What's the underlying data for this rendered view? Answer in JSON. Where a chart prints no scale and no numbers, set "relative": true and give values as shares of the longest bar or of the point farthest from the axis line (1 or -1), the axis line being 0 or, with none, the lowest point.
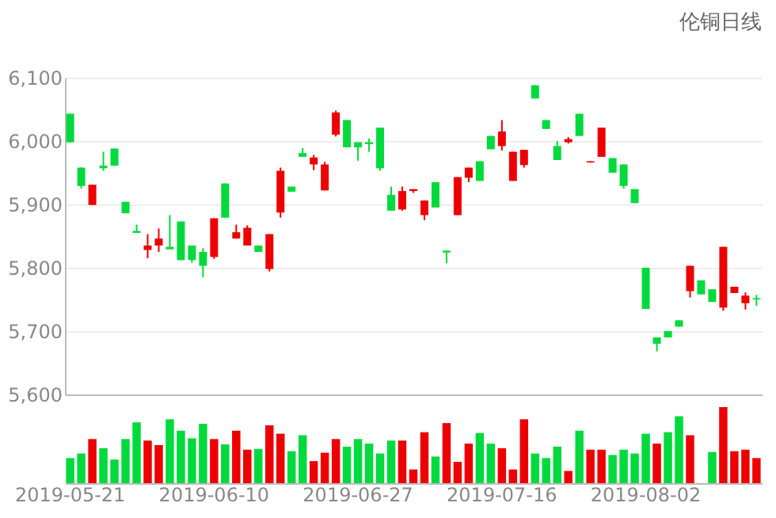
{
  "chart_data": [
    {
      "type": "candlestick",
      "title": "伦铜日线",
      "categories": [
        "2019-05-21",
        null,
        null,
        null,
        null,
        null,
        null,
        null,
        null,
        null,
        null,
        null,
        null,
        "2019-06-10",
        null,
        null,
        null,
        null,
        null,
        null,
        null,
        null,
        null,
        null,
        null,
        null,
        "2019-06-27",
        null,
        null,
        null,
        null,
        null,
        null,
        null,
        null,
        null,
        null,
        null,
        null,
        "2019-07-16",
        null,
        null,
        null,
        null,
        null,
        null,
        null,
        null,
        null,
        null,
        null,
        null,
        "2019-08-02",
        null,
        null,
        null,
        null,
        null,
        null,
        null,
        null,
        null,
        null
      ],
      "ohlc": [
        [
          6043,
          6043,
          5998,
          5998
        ],
        [
          5958,
          5958,
          5925,
          5929
        ],
        [
          5899,
          5931,
          5899,
          5931
        ],
        [
          5961,
          5983,
          5953,
          5957
        ],
        [
          5988,
          5988,
          5961,
          5961
        ],
        [
          5904,
          5904,
          5886,
          5886
        ],
        [
          5858,
          5868,
          5855,
          5855
        ],
        [
          5828,
          5853,
          5815,
          5835
        ],
        [
          5835,
          5862,
          5825,
          5846
        ],
        [
          5833,
          5883,
          5829,
          5829
        ],
        [
          5873,
          5873,
          5812,
          5812
        ],
        [
          5835,
          5835,
          5808,
          5812
        ],
        [
          5825,
          5831,
          5785,
          5803
        ],
        [
          5817,
          5878,
          5814,
          5878
        ],
        [
          5933,
          5933,
          5879,
          5879
        ],
        [
          5846,
          5868,
          5846,
          5856
        ],
        [
          5835,
          5867,
          5835,
          5863
        ],
        [
          5835,
          5835,
          5825,
          5825
        ],
        [
          5798,
          5853,
          5794,
          5853
        ],
        [
          5887,
          5958,
          5879,
          5953
        ],
        [
          5928,
          5928,
          5920,
          5920
        ],
        [
          5981,
          5989,
          5975,
          5975
        ],
        [
          5963,
          5978,
          5954,
          5974
        ],
        [
          5922,
          5967,
          5922,
          5963
        ],
        [
          6010,
          6048,
          6007,
          6045
        ],
        [
          6033,
          6033,
          5990,
          5990
        ],
        [
          5998,
          5998,
          5969,
          5990
        ],
        [
          5998,
          6004,
          5983,
          5995
        ],
        [
          6021,
          6021,
          5953,
          5957
        ],
        [
          5915,
          5928,
          5890,
          5890
        ],
        [
          5892,
          5928,
          5890,
          5921
        ],
        [
          5921,
          5924,
          5918,
          5924
        ],
        [
          5883,
          5906,
          5875,
          5906
        ],
        [
          5935,
          5935,
          5895,
          5895
        ],
        [
          5827,
          5827,
          5807,
          5824
        ],
        [
          5883,
          5943,
          5883,
          5943
        ],
        [
          5942,
          5958,
          5935,
          5958
        ],
        [
          5968,
          5968,
          5937,
          5937
        ],
        [
          6008,
          6008,
          5987,
          5987
        ],
        [
          5992,
          6033,
          5985,
          6015
        ],
        [
          5937,
          5983,
          5937,
          5983
        ],
        [
          5962,
          5986,
          5958,
          5986
        ],
        [
          6088,
          6088,
          6067,
          6067
        ],
        [
          6033,
          6033,
          6019,
          6019
        ],
        [
          5992,
          6000,
          5970,
          5970
        ],
        [
          5998,
          6006,
          5996,
          6003
        ],
        [
          6043,
          6043,
          6008,
          6008
        ],
        [
          5966,
          5968,
          5966,
          5968
        ],
        [
          5975,
          6021,
          5975,
          6021
        ],
        [
          5973,
          5973,
          5950,
          5950
        ],
        [
          5963,
          5963,
          5925,
          5929
        ],
        [
          5924,
          5924,
          5902,
          5902
        ],
        [
          5800,
          5800,
          5735,
          5735
        ],
        [
          5690,
          5690,
          5668,
          5680
        ],
        [
          5700,
          5700,
          5690,
          5690
        ],
        [
          5717,
          5717,
          5707,
          5707
        ],
        [
          5763,
          5803,
          5753,
          5803
        ],
        [
          5780,
          5780,
          5758,
          5758
        ],
        [
          5766,
          5766,
          5746,
          5746
        ],
        [
          5737,
          5833,
          5732,
          5833
        ],
        [
          5760,
          5770,
          5760,
          5770
        ],
        [
          5744,
          5761,
          5734,
          5756
        ],
        [
          5752,
          5757,
          5740,
          5750
        ]
      ],
      "colors": [
        "#00da3c",
        "#00da3c",
        "#ec0000",
        "#00da3c",
        "#00da3c",
        "#00da3c",
        "#00da3c",
        "#ec0000",
        "#ec0000",
        "#00da3c",
        "#00da3c",
        "#00da3c",
        "#00da3c",
        "#ec0000",
        "#00da3c",
        "#ec0000",
        "#ec0000",
        "#00da3c",
        "#ec0000",
        "#ec0000",
        "#00da3c",
        "#00da3c",
        "#ec0000",
        "#ec0000",
        "#ec0000",
        "#00da3c",
        "#00da3c",
        "#00da3c",
        "#00da3c",
        "#00da3c",
        "#ec0000",
        "#ec0000",
        "#ec0000",
        "#00da3c",
        "#00da3c",
        "#ec0000",
        "#ec0000",
        "#00da3c",
        "#00da3c",
        "#ec0000",
        "#ec0000",
        "#ec0000",
        "#00da3c",
        "#00da3c",
        "#00da3c",
        "#ec0000",
        "#00da3c",
        "#ec0000",
        "#ec0000",
        "#00da3c",
        "#00da3c",
        "#00da3c",
        "#00da3c",
        "#00da3c",
        "#00da3c",
        "#00da3c",
        "#ec0000",
        "#00da3c",
        "#00da3c",
        "#ec0000",
        "#ec0000",
        "#ec0000",
        "#00da3c"
      ],
      "ylim": [
        5600,
        6100
      ],
      "yticks": [
        {
          "value": 5600,
          "label": "5,600"
        },
        {
          "value": 5700,
          "label": "5,700"
        },
        {
          "value": 5800,
          "label": "5,800"
        },
        {
          "value": 5900,
          "label": "5,900"
        },
        {
          "value": 6000,
          "label": "6,000"
        },
        {
          "value": 6100,
          "label": "6,100"
        }
      ],
      "grid": "y",
      "tick_labels": "y"
    },
    {
      "type": "bar",
      "relative": true,
      "categories": [
        "2019-05-21",
        null,
        null,
        null,
        null,
        null,
        null,
        null,
        null,
        null,
        null,
        null,
        null,
        "2019-06-10",
        null,
        null,
        null,
        null,
        null,
        null,
        null,
        null,
        null,
        null,
        null,
        null,
        "2019-06-27",
        null,
        null,
        null,
        null,
        null,
        null,
        null,
        null,
        null,
        null,
        null,
        null,
        "2019-07-16",
        null,
        null,
        null,
        null,
        null,
        null,
        null,
        null,
        null,
        null,
        null,
        null,
        "2019-08-02",
        null,
        null,
        null,
        null,
        null,
        null,
        null,
        null,
        null,
        null
      ],
      "values": [
        0.33,
        0.39,
        0.58,
        0.46,
        0.31,
        0.58,
        0.8,
        0.56,
        0.5,
        0.84,
        0.69,
        0.59,
        0.78,
        0.58,
        0.51,
        0.69,
        0.44,
        0.45,
        0.76,
        0.65,
        0.42,
        0.63,
        0.29,
        0.4,
        0.58,
        0.48,
        0.58,
        0.52,
        0.39,
        0.56,
        0.56,
        0.18,
        0.67,
        0.35,
        0.79,
        0.28,
        0.52,
        0.66,
        0.52,
        0.46,
        0.18,
        0.84,
        0.39,
        0.33,
        0.48,
        0.16,
        0.69,
        0.44,
        0.44,
        0.37,
        0.44,
        0.39,
        0.65,
        0.52,
        0.67,
        0.88,
        0.63,
        null,
        0.41,
        1.0,
        0.42,
        0.44,
        0.33
      ],
      "colors": [
        "#00da3c",
        "#00da3c",
        "#ec0000",
        "#00da3c",
        "#00da3c",
        "#00da3c",
        "#00da3c",
        "#ec0000",
        "#ec0000",
        "#00da3c",
        "#00da3c",
        "#00da3c",
        "#00da3c",
        "#ec0000",
        "#00da3c",
        "#ec0000",
        "#ec0000",
        "#00da3c",
        "#ec0000",
        "#ec0000",
        "#00da3c",
        "#00da3c",
        "#ec0000",
        "#ec0000",
        "#ec0000",
        "#00da3c",
        "#00da3c",
        "#00da3c",
        "#00da3c",
        "#00da3c",
        "#ec0000",
        "#ec0000",
        "#ec0000",
        "#00da3c",
        "#ec0000",
        "#ec0000",
        "#ec0000",
        "#00da3c",
        "#00da3c",
        "#ec0000",
        "#ec0000",
        "#ec0000",
        "#00da3c",
        "#00da3c",
        "#00da3c",
        "#ec0000",
        "#00da3c",
        "#ec0000",
        "#ec0000",
        "#00da3c",
        "#00da3c",
        "#00da3c",
        "#00da3c",
        "#ec0000",
        "#00da3c",
        "#00da3c",
        "#ec0000",
        "#00da3c",
        "#00da3c",
        "#ec0000",
        "#ec0000",
        "#ec0000",
        "#ec0000"
      ]
    }
  ]
}
